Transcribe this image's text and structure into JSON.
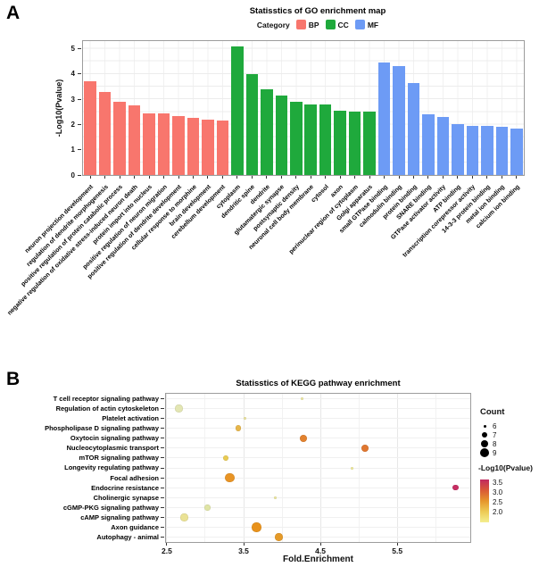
{
  "panel_a": {
    "label": "A"
  },
  "panel_b": {
    "label": "B"
  },
  "chart_data": [
    {
      "type": "bar",
      "title": "Statisstics of GO enrichment map",
      "legend_title": "Category",
      "ylabel": "-Log10(Pvalue)",
      "ylim": [
        0,
        5.3
      ],
      "y_ticks": [
        0,
        1,
        2,
        3,
        4,
        5
      ],
      "grid": true,
      "series": [
        {
          "name": "BP",
          "color": "#F8766D",
          "items": [
            [
              "neuron projection development",
              3.7
            ],
            [
              "regulation of dendrite morphogenesis",
              3.3
            ],
            [
              "positive regulation of protein catabolic process",
              2.9
            ],
            [
              "negative regulation of oxidative stress-induced neuron death",
              2.75
            ],
            [
              "protein import into nucleus",
              2.45
            ],
            [
              "positive regulation of neuron migration",
              2.45
            ],
            [
              "positive regulation of dendrite development",
              2.35
            ],
            [
              "cellular response to morphine",
              2.25
            ],
            [
              "brain development",
              2.2
            ],
            [
              "cerebellum development",
              2.15
            ]
          ]
        },
        {
          "name": "CC",
          "color": "#1FA93C",
          "items": [
            [
              "cytoplasm",
              5.1
            ],
            [
              "dendritic spine",
              4.0
            ],
            [
              "dendrite",
              3.4
            ],
            [
              "glutamatergic synapse",
              3.15
            ],
            [
              "postsynaptic density",
              2.9
            ],
            [
              "neuronal cell body membrane",
              2.8
            ],
            [
              "cytosol",
              2.8
            ],
            [
              "axon",
              2.55
            ],
            [
              "perinuclear region of cytoplasm",
              2.5
            ],
            [
              "Golgi apparatus",
              2.5
            ]
          ]
        },
        {
          "name": "MF",
          "color": "#6D9BF5",
          "items": [
            [
              "small GTPase binding",
              4.45
            ],
            [
              "calmodulin binding",
              4.3
            ],
            [
              "protein binding",
              3.65
            ],
            [
              "SNARE binding",
              2.4
            ],
            [
              "GTPase activator activity",
              2.3
            ],
            [
              "ATP binding",
              2.0
            ],
            [
              "transcription corepressor activity",
              1.95
            ],
            [
              "14-3-3 protein binding",
              1.95
            ],
            [
              "metal ion binding",
              1.9
            ],
            [
              "calcium ion binding",
              1.85
            ]
          ]
        }
      ]
    },
    {
      "type": "scatter",
      "title": "Statisstics of KEGG pathway enrichment",
      "xlabel": "Fold.Enrichment",
      "xlim": [
        2.49,
        6.45
      ],
      "x_ticks": [
        "2.5",
        "3.5",
        "4.5",
        "5.5"
      ],
      "size_legend": {
        "title": "Count",
        "values": [
          6,
          7,
          8,
          9
        ]
      },
      "color_legend": {
        "title": "-Log10(Pvalue)",
        "ticks": [
          "3.5",
          "3.0",
          "2.5",
          "2.0"
        ],
        "gradient": [
          "#C12A60",
          "#D95A36",
          "#E6952C",
          "#EDCB55",
          "#F4EE8F"
        ]
      },
      "points": [
        {
          "pathway": "T cell receptor signaling pathway",
          "x": 4.26,
          "count": 6,
          "neg_log10_pvalue": 1.9,
          "color": "#EDE8A2"
        },
        {
          "pathway": "Regulation of actin cytoskeleton",
          "x": 2.66,
          "count": 8,
          "neg_log10_pvalue": 1.8,
          "color": "#E3E6B3"
        },
        {
          "pathway": "Platelet activation",
          "x": 3.52,
          "count": 6,
          "neg_log10_pvalue": 1.9,
          "color": "#EDE59F"
        },
        {
          "pathway": "Phospholipase D signaling pathway",
          "x": 3.43,
          "count": 7,
          "neg_log10_pvalue": 2.3,
          "color": "#E7B64A"
        },
        {
          "pathway": "Oxytocin signaling pathway",
          "x": 4.28,
          "count": 8,
          "neg_log10_pvalue": 2.8,
          "color": "#E2822E"
        },
        {
          "pathway": "Nucleocytoplasmic transport",
          "x": 5.08,
          "count": 8,
          "neg_log10_pvalue": 2.9,
          "color": "#E07730"
        },
        {
          "pathway": "mTOR signaling pathway",
          "x": 3.27,
          "count": 7,
          "neg_log10_pvalue": 2.2,
          "color": "#E9CB52"
        },
        {
          "pathway": "Longevity regulating pathway",
          "x": 4.91,
          "count": 6,
          "neg_log10_pvalue": 1.8,
          "color": "#F0EA9C"
        },
        {
          "pathway": "Focal adhesion",
          "x": 3.32,
          "count": 9,
          "neg_log10_pvalue": 2.6,
          "color": "#E89425"
        },
        {
          "pathway": "Endocrine resistance",
          "x": 6.26,
          "count": 7,
          "neg_log10_pvalue": 3.5,
          "color": "#C72E63"
        },
        {
          "pathway": "Cholinergic synapse",
          "x": 3.91,
          "count": 6,
          "neg_log10_pvalue": 1.9,
          "color": "#EDE8A0"
        },
        {
          "pathway": "cGMP-PKG signaling pathway",
          "x": 3.03,
          "count": 7,
          "neg_log10_pvalue": 1.9,
          "color": "#DFE4A5"
        },
        {
          "pathway": "cAMP signaling pathway",
          "x": 2.73,
          "count": 8,
          "neg_log10_pvalue": 2.0,
          "color": "#EAE295"
        },
        {
          "pathway": "Axon guidance",
          "x": 3.67,
          "count": 9,
          "neg_log10_pvalue": 2.6,
          "color": "#E8921C"
        },
        {
          "pathway": "Autophagy - animal",
          "x": 3.96,
          "count": 8,
          "neg_log10_pvalue": 2.5,
          "color": "#E59A28"
        }
      ]
    }
  ]
}
